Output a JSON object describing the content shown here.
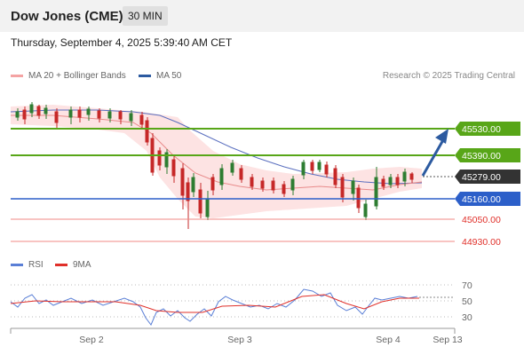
{
  "header": {
    "title": "Dow Jones (CME)",
    "timeframe": "30 MIN"
  },
  "subtitle": "Thursday, September 4, 2025 5:39:40 AM CET",
  "legend": {
    "bollinger": {
      "label": "MA 20 + Bollinger Bands",
      "color": "#f08080"
    },
    "ma50": {
      "label": "MA 50",
      "color": "#2c5aa0"
    }
  },
  "credit": "Research © 2025 Trading Central",
  "levels": {
    "r2": "45530.00",
    "r1": "45390.00",
    "last": "45279.00",
    "s1": "45160.00",
    "s2": "45050.00",
    "s3": "44930.00"
  },
  "colors": {
    "resistance": "#58a618",
    "support": "#2c5fc9",
    "last": "#333333",
    "extra_support": "#e0302a",
    "arrow": "#2c5aa0"
  },
  "rsi_legend": {
    "rsi": "RSI",
    "ma": "9MA"
  },
  "rsi_ticks": [
    "70",
    "50",
    "30"
  ],
  "time_axis": [
    "Sep 2",
    "Sep 3",
    "Sep 4",
    "Sep 13"
  ],
  "chart_data": {
    "type": "candlestick",
    "price_levels": [
      45530,
      45390,
      45279,
      45160,
      45050,
      44930
    ],
    "rsi_levels": [
      70,
      50,
      30
    ],
    "indicators": [
      "MA 20 + Bollinger Bands",
      "MA 50",
      "RSI",
      "9MA"
    ],
    "projection": "up toward 45530.00"
  }
}
